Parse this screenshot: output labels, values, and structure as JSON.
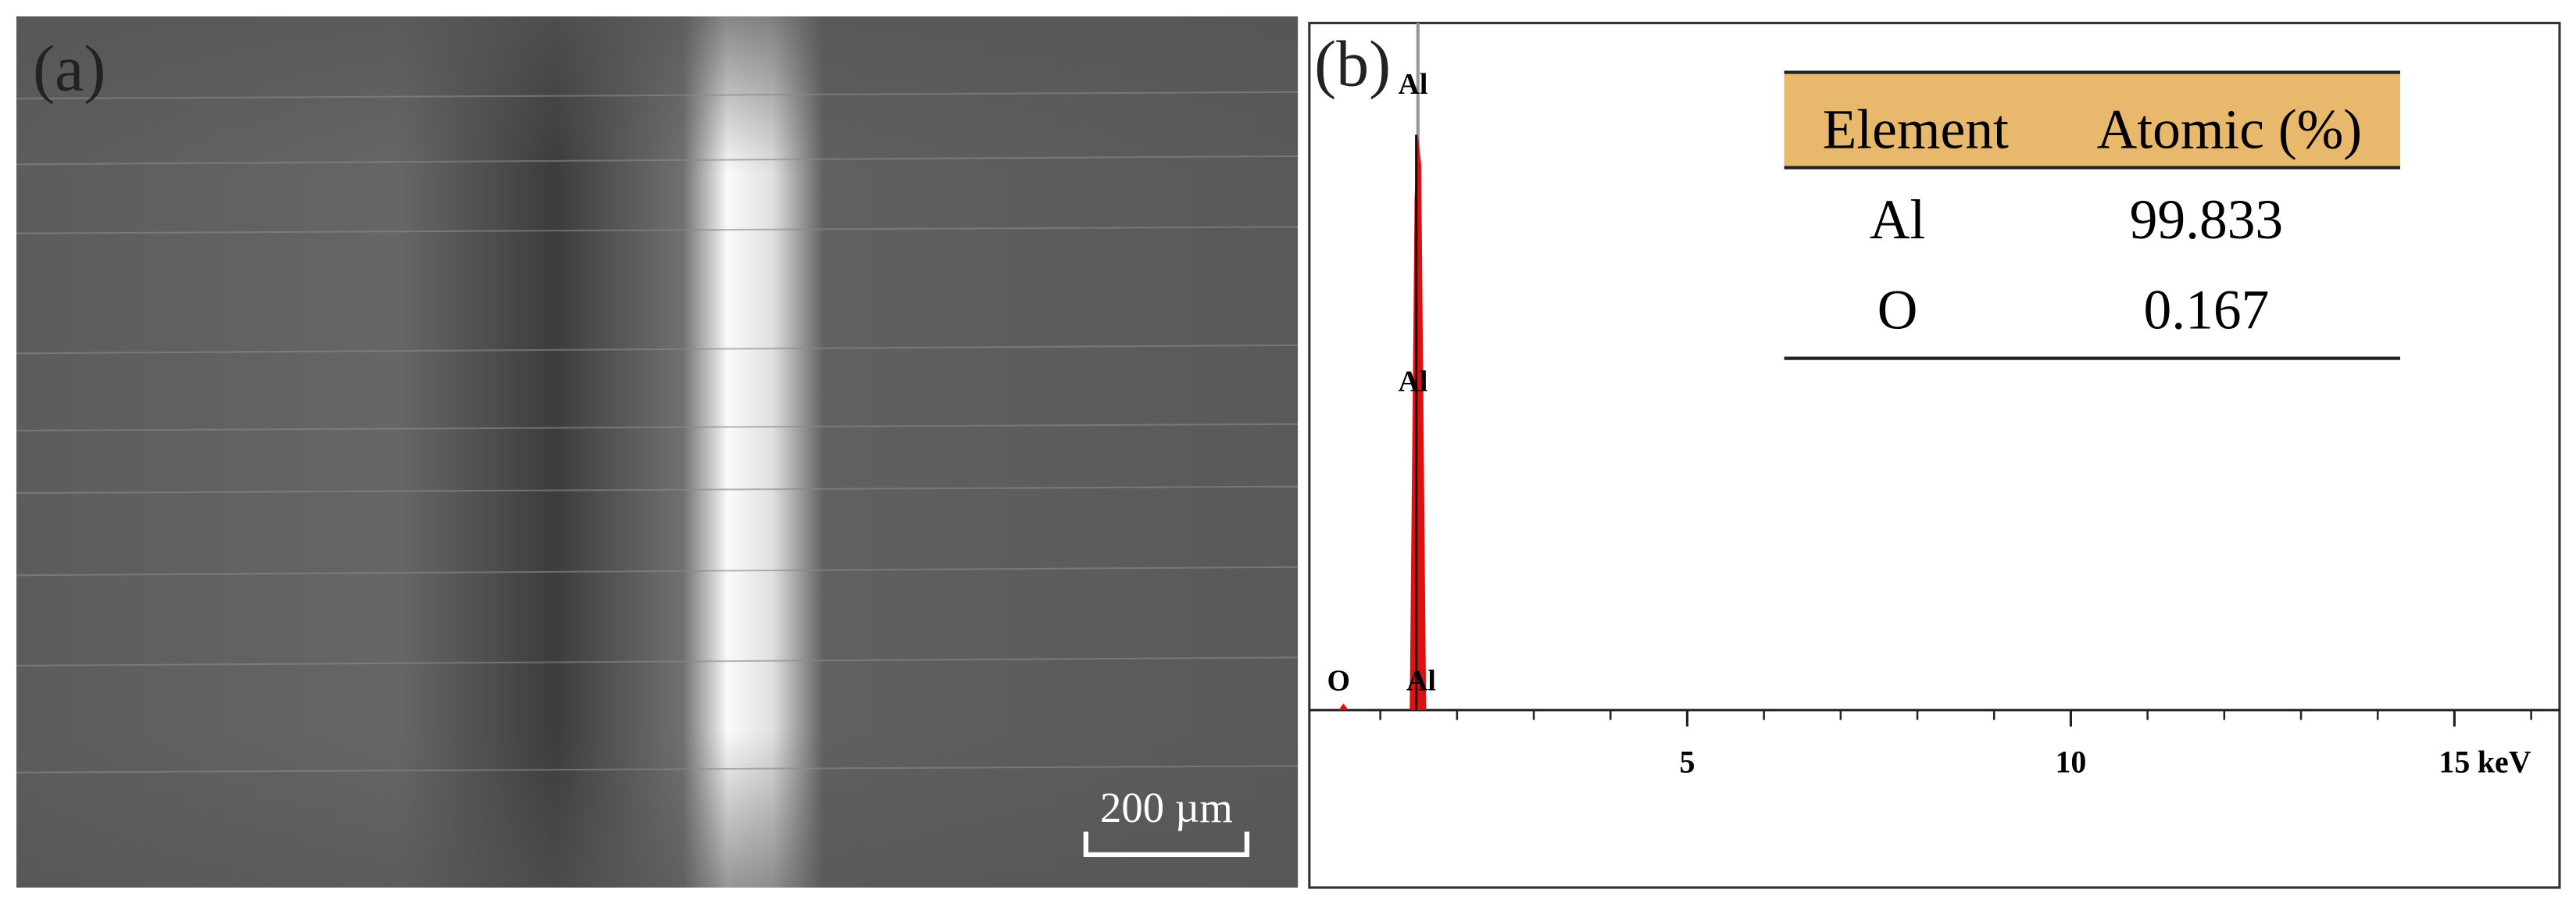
{
  "panel_a": {
    "label": "(a)",
    "scale_bar": "200 µm"
  },
  "panel_b": {
    "label": "(b)",
    "spectrum": {
      "xlim": [
        0,
        16.4
      ],
      "xticks": [
        5,
        10,
        15
      ],
      "minor_xticks": [
        1,
        2,
        3,
        4,
        6,
        7,
        8,
        9,
        11,
        12,
        13,
        14,
        16
      ],
      "x_unit": "keV",
      "peaks": [
        {
          "label": "Al",
          "x": 1.49
        },
        {
          "label": "O",
          "x": 0.52
        }
      ],
      "peak_labels": [
        "Al",
        "Al",
        "Al",
        "O"
      ]
    },
    "table": {
      "header": [
        "Element",
        "Atomic (%)"
      ],
      "rows": [
        [
          "Al",
          99.833
        ],
        [
          "O",
          0.167
        ]
      ]
    }
  }
}
